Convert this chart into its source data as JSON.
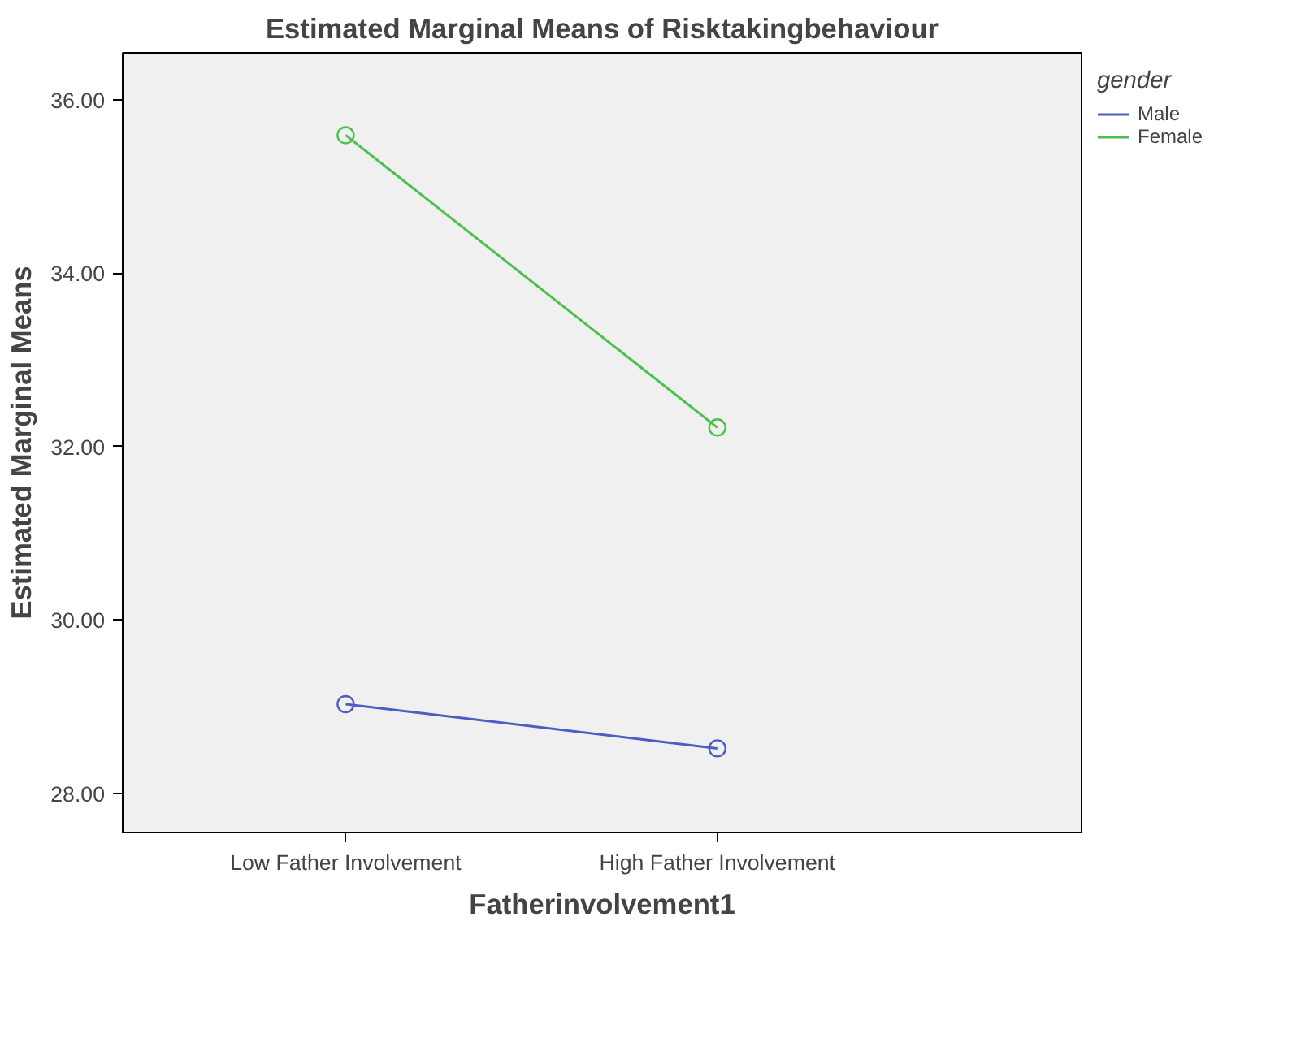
{
  "chart_data": {
    "type": "line",
    "title": "Estimated Marginal Means of Risktakingbehaviour",
    "xlabel": "Fatherinvolvement1",
    "ylabel": "Estimated Marginal Means",
    "legend_title": "gender",
    "categories": [
      "Low Father Involvement",
      "High Father Involvement"
    ],
    "series": [
      {
        "name": "Male",
        "color": "#4a5fc1",
        "values": [
          29.03,
          28.52
        ]
      },
      {
        "name": "Female",
        "color": "#4cc04c",
        "values": [
          35.59,
          32.22
        ]
      }
    ],
    "ylim": [
      27.55,
      36.54
    ],
    "yticks": [
      {
        "value": 28,
        "label": "28.00"
      },
      {
        "value": 30,
        "label": "30.00"
      },
      {
        "value": 32,
        "label": "32.00"
      },
      {
        "value": 34,
        "label": "34.00"
      },
      {
        "value": 36,
        "label": "36.00"
      }
    ],
    "marker": "circle",
    "line_style": "solid",
    "grid": false,
    "legend": "top right"
  }
}
